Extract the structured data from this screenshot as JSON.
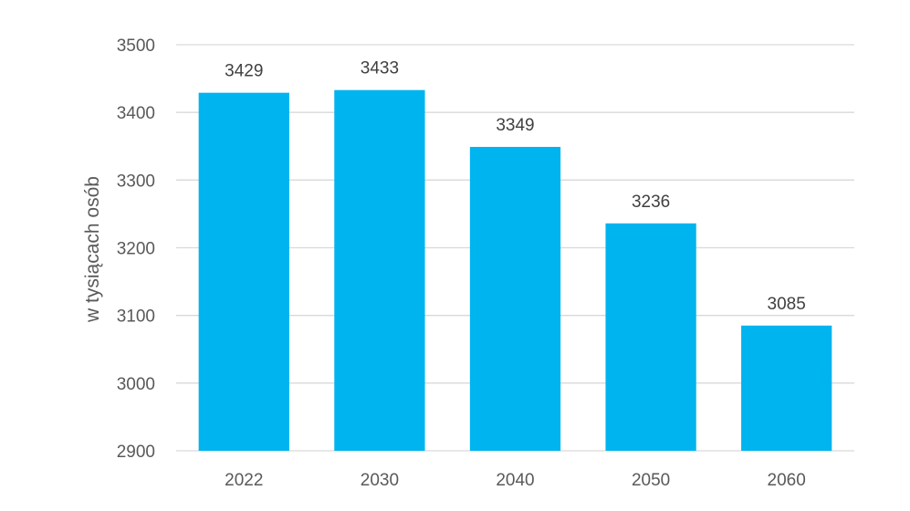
{
  "chart_data": {
    "type": "bar",
    "title": "",
    "xlabel": "",
    "ylabel": "w tysiącach osób",
    "categories": [
      "2022",
      "2030",
      "2040",
      "2050",
      "2060"
    ],
    "values": [
      3429,
      3433,
      3349,
      3236,
      3085
    ],
    "data_labels": [
      "3429",
      "3433",
      "3349",
      "3236",
      "3085"
    ],
    "ylim": [
      2900,
      3500
    ],
    "yticks": [
      2900,
      3000,
      3100,
      3200,
      3300,
      3400,
      3500
    ],
    "ytick_labels": [
      "2900",
      "3000",
      "3100",
      "3200",
      "3300",
      "3400",
      "3500"
    ],
    "grid": true,
    "legend": "none",
    "bar_color": "#00b4ef"
  }
}
